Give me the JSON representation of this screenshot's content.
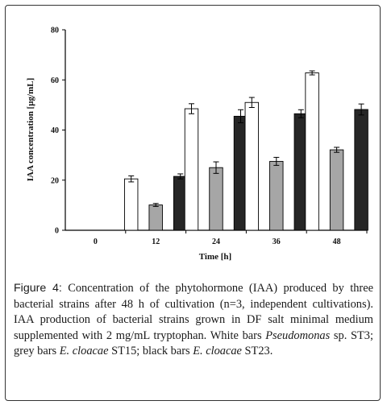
{
  "chart_data": {
    "type": "bar",
    "categories": [
      "0",
      "12",
      "24",
      "36",
      "48"
    ],
    "series": [
      {
        "values": [
          0,
          20.5,
          48.5,
          51,
          62.8
        ],
        "errors": [
          0,
          1.2,
          2,
          2,
          0.8
        ],
        "color": "#ffffff"
      },
      {
        "values": [
          0,
          10.1,
          25,
          27.5,
          32.1
        ],
        "errors": [
          0,
          0.6,
          2.3,
          1.6,
          1
        ],
        "color": "#a6a6a6"
      },
      {
        "values": [
          0,
          21.5,
          45.5,
          46.5,
          48.2
        ],
        "errors": [
          0,
          1,
          2.6,
          1.6,
          2.2
        ],
        "color": "#262626"
      }
    ],
    "xlabel": "Time [h]",
    "ylabel": "IAA concentration [µg/mL]",
    "ylim": [
      0,
      80
    ],
    "yticks": [
      "0",
      "20",
      "40",
      "60",
      "80"
    ],
    "grid": false,
    "legend": "none"
  },
  "caption": {
    "label": "Figure 4:",
    "part1": " Concentration of the phytohormone (IAA) produced by three bacterial strains after 48 h of cultivation (n=3, independent cultivations). IAA production of bacterial strains grown in DF salt minimal medium supplemented with 2 mg/mL tryptophan. White bars ",
    "taxon1": "Pseudomonas",
    "part2": " sp. ST3; grey bars ",
    "taxon2": "E. cloacae",
    "part3": " ST15; black bars ",
    "taxon3": "E. cloacae",
    "part4": " ST23."
  }
}
